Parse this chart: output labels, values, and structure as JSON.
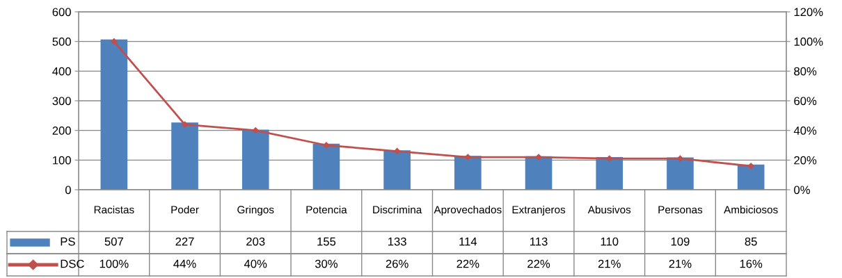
{
  "chart_data": {
    "type": "bar",
    "categories": [
      "Racistas",
      "Poder",
      "Gringos",
      "Potencia",
      "Discrimina",
      "Aprovechados",
      "Extranjeros",
      "Abusivos",
      "Personas",
      "Ambiciosos"
    ],
    "series": [
      {
        "name": "PS",
        "color": "#4f81bd",
        "values": [
          507,
          227,
          203,
          155,
          133,
          114,
          113,
          110,
          109,
          85
        ],
        "value_labels": [
          "507",
          "227",
          "203",
          "155",
          "133",
          "114",
          "113",
          "110",
          "109",
          "85"
        ]
      },
      {
        "name": "DSC",
        "type": "line",
        "axis": "y2",
        "color": "#c0504d",
        "marker": "diamond",
        "values": [
          100,
          44,
          40,
          30,
          26,
          22,
          22,
          21,
          21,
          16
        ],
        "value_labels": [
          "100%",
          "44%",
          "40%",
          "30%",
          "26%",
          "22%",
          "22%",
          "21%",
          "21%",
          "16%"
        ]
      }
    ],
    "ylim": [
      0,
      600
    ],
    "yticks": [
      0,
      100,
      200,
      300,
      400,
      500,
      600
    ],
    "y2lim": [
      0,
      120
    ],
    "y2ticks": [
      {
        "value": 0,
        "label": "0%"
      },
      {
        "value": 20,
        "label": "20%"
      },
      {
        "value": 40,
        "label": "40%"
      },
      {
        "value": 60,
        "label": "60%"
      },
      {
        "value": 80,
        "label": "80%"
      },
      {
        "value": 100,
        "label": "100%"
      },
      {
        "value": 120,
        "label": "120%"
      }
    ],
    "grid": "y",
    "legend": "bottom left"
  }
}
